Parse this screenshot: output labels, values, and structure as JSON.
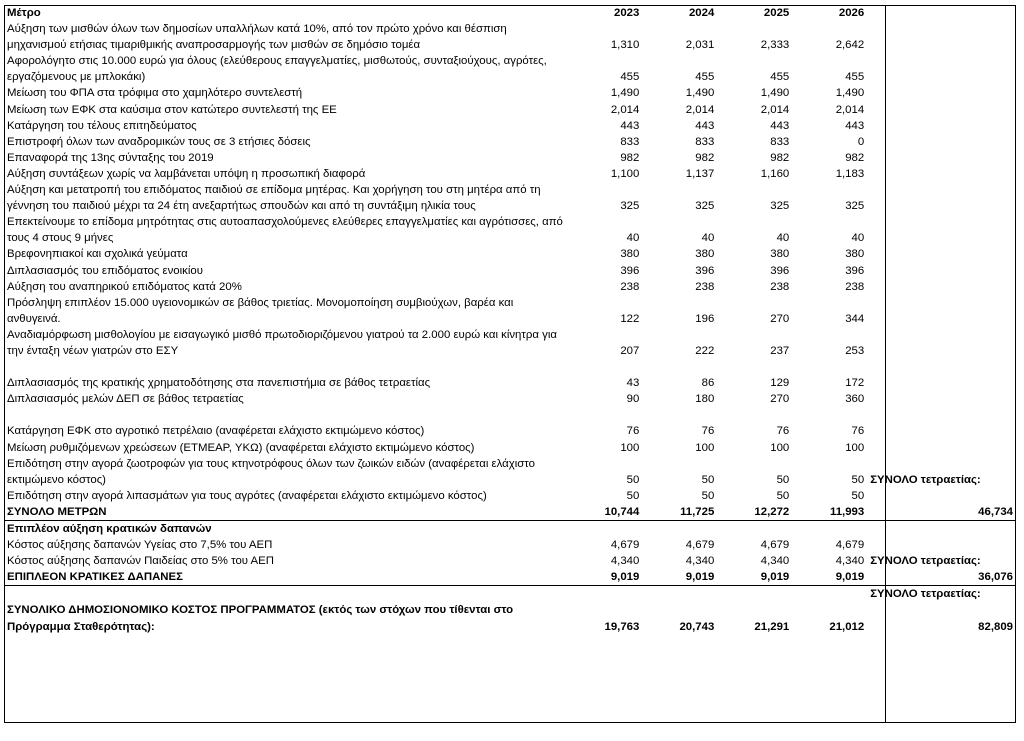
{
  "headers": {
    "measure": "Μέτρο",
    "y2023": "2023",
    "y2024": "2024",
    "y2025": "2025",
    "y2026": "2026"
  },
  "rows": [
    {
      "text": "Αύξηση των μισθών όλων των δημοσίων υπαλλήλων κατά 10%, από τον πρώτο χρόνο και θέσπιση μηχανισμού ετήσιας τιμαριθμικής αναπροσαρμογής των μισθών σε δημόσιο τομέα",
      "v": [
        "1,310",
        "2,031",
        "2,333",
        "2,642"
      ],
      "t": ""
    },
    {
      "text": "Αφορολόγητο στις 10.000 ευρώ για όλους (ελεύθερους επαγγελματίες, μισθωτούς, συνταξιούχους, αγρότες, εργαζόμενους με μπλοκάκι)",
      "v": [
        "455",
        "455",
        "455",
        "455"
      ],
      "t": ""
    },
    {
      "text": "Μείωση του ΦΠΑ στα τρόφιμα στο χαμηλότερο συντελεστή",
      "v": [
        "1,490",
        "1,490",
        "1,490",
        "1,490"
      ],
      "t": ""
    },
    {
      "text": "Μείωση των ΕΦΚ στα καύσιμα στον κατώτερο συντελεστή της ΕΕ",
      "v": [
        "2,014",
        "2,014",
        "2,014",
        "2,014"
      ],
      "t": ""
    },
    {
      "text": "Κατάργηση του τέλους επιτηδεύματος",
      "v": [
        "443",
        "443",
        "443",
        "443"
      ],
      "t": ""
    },
    {
      "text": "Επιστροφή όλων των αναδρομικών τους σε 3 ετήσιες δόσεις",
      "v": [
        "833",
        "833",
        "833",
        "0"
      ],
      "t": ""
    },
    {
      "text": "Επαναφορά της 13ης σύνταξης του 2019",
      "v": [
        "982",
        "982",
        "982",
        "982"
      ],
      "t": ""
    },
    {
      "text": "Αύξηση συντάξεων χωρίς να λαμβάνεται υπόψη η προσωπική διαφορά",
      "v": [
        "1,100",
        "1,137",
        "1,160",
        "1,183"
      ],
      "t": ""
    },
    {
      "text": "Αύξηση και μετατροπή του επιδόματος παιδιού σε επίδομα μητέρας. Και χορήγηση του στη μητέρα από τη γέννηση του παιδιού μέχρι τα 24 έτη ανεξαρτήτως σπουδών και από τη συντάξιμη ηλικία τους",
      "v": [
        "325",
        "325",
        "325",
        "325"
      ],
      "t": ""
    },
    {
      "text": "Επεκτείνουμε το επίδομα μητρότητας στις αυτοαπασχολούμενες ελεύθερες επαγγελματίες και αγρότισσες, από τους 4 στους 9 μήνες",
      "v": [
        "40",
        "40",
        "40",
        "40"
      ],
      "t": ""
    },
    {
      "text": "Βρεφονηπιακοί και σχολικά γεύματα",
      "v": [
        "380",
        "380",
        "380",
        "380"
      ],
      "t": ""
    },
    {
      "text": "Διπλασιασμός του επιδόματος ενοικίου",
      "v": [
        "396",
        "396",
        "396",
        "396"
      ],
      "t": ""
    },
    {
      "text": "Αύξηση του αναπηρικού επιδόματος κατά 20%",
      "v": [
        "238",
        "238",
        "238",
        "238"
      ],
      "t": ""
    },
    {
      "text": "Πρόσληψη επιπλέον 15.000 υγειονομικών σε βάθος τριετίας. Μονομοποίηση συμβιούχων, βαρέα και ανθυγεινά.",
      "v": [
        "122",
        "196",
        "270",
        "344"
      ],
      "t": ""
    },
    {
      "text": "Αναδιαμόρφωση μισθολογίου με εισαγωγικό μισθό πρωτοδιοριζόμενου γιατρού τα 2.000 ευρώ και κίνητρα για την ένταξη νέων γιατρών στο ΕΣΥ",
      "v": [
        "207",
        "222",
        "237",
        "253"
      ],
      "t": ""
    },
    {
      "text": "Διπλασιασμός της κρατικής χρηματοδότησης στα πανεπιστήμια σε βάθος τετραετίας",
      "v": [
        "43",
        "86",
        "129",
        "172"
      ],
      "t": "",
      "gap": true
    },
    {
      "text": "Διπλασιασμός μελών ΔΕΠ σε βάθος τετραετίας",
      "v": [
        "90",
        "180",
        "270",
        "360"
      ],
      "t": ""
    },
    {
      "text": "Κατάργηση ΕΦΚ στο αγροτικό πετρέλαιο (αναφέρεται ελάχιστο εκτιμώμενο κόστος)",
      "v": [
        "76",
        "76",
        "76",
        "76"
      ],
      "t": "",
      "gap": true
    },
    {
      "text": "Μείωση ρυθμιζόμενων χρεώσεων (ΕΤΜΕΑΡ, ΥΚΩ) (αναφέρεται ελάχιστο εκτιμώμενο κόστος)",
      "v": [
        "100",
        "100",
        "100",
        "100"
      ],
      "t": ""
    },
    {
      "text": "Επιδότηση στην αγορά ζωοτροφών για τους κτηνοτρόφους όλων των ζωικών ειδών (αναφέρεται ελάχιστο εκτιμώμενο κόστος)",
      "v": [
        "50",
        "50",
        "50",
        "50"
      ],
      "t": "ΣΥΝΟΛΟ τετραετίας:",
      "tbold": true
    },
    {
      "text": "Επιδότηση στην αγορά λιπασμάτων για τους αγρότες  (αναφέρεται ελάχιστο εκτιμώμενο κόστος)",
      "v": [
        "50",
        "50",
        "50",
        "50"
      ],
      "t": ""
    }
  ],
  "total_measures": {
    "label": "ΣΥΝΟΛΟ ΜΕΤΡΩΝ",
    "v": [
      "10,744",
      "11,725",
      "12,272",
      "11,993"
    ],
    "t": "46,734"
  },
  "extra_header": "Επιπλέον αύξηση κρατικών δαπανών",
  "extra_rows": [
    {
      "text": "Κόστος αύξησης δαπανών Υγείας στο 7,5% του ΑΕΠ",
      "v": [
        "4,679",
        "4,679",
        "4,679",
        "4,679"
      ],
      "t": ""
    },
    {
      "text": "Κόστος αύξησης δαπανών Παιδείας στο 5% του ΑΕΠ",
      "v": [
        "4,340",
        "4,340",
        "4,340",
        "4,340"
      ],
      "t": "ΣΥΝΟΛΟ τετραετίας:",
      "tbold": true
    }
  ],
  "total_extra": {
    "label": "ΕΠΙΠΛΕΟΝ ΚΡΑΤΙΚΕΣ ΔΑΠΑΝΕΣ",
    "v": [
      "9,019",
      "9,019",
      "9,019",
      "9,019"
    ],
    "t": "36,076"
  },
  "grand_total_label_row": {
    "t": "ΣΥΝΟΛΟ τετραετίας:"
  },
  "grand_total": {
    "label": "ΣΥΝΟΛΙΚΟ ΔΗΜΟΣΙΟΝΟΜΙΚΟ ΚΟΣΤΟΣ ΠΡΟΓΡΑΜΜΑΤΟΣ (εκτός των στόχων που τίθενται στο Πρόγραμμα Σταθερότητας):",
    "v": [
      "19,763",
      "20,743",
      "21,291",
      "21,012"
    ],
    "t": "82,809"
  }
}
